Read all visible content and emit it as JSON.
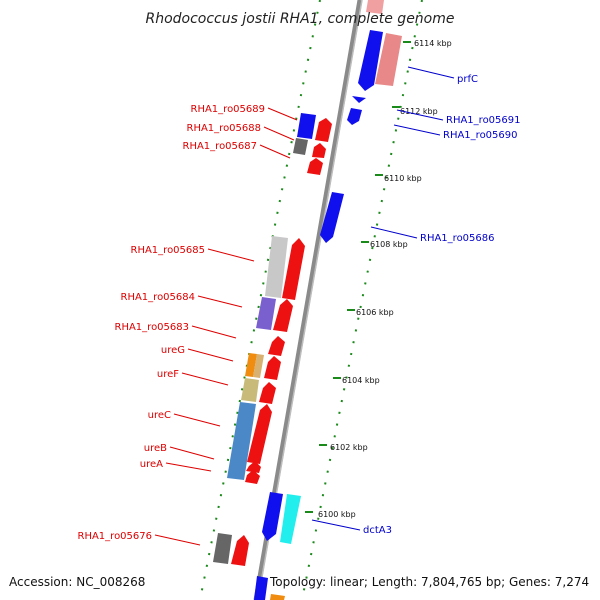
{
  "title": "Rhodococcus jostii RHA1, complete genome",
  "footer": {
    "accession": "Accession: NC_008268",
    "summary": "Topology: linear; Length: 7,804,765 bp; Genes: 7,274"
  },
  "colors": {
    "forward_label": "#cc0000",
    "reverse_label": "#0000cc",
    "backbone": "#888888",
    "tick": "#008000"
  },
  "ticks": [
    "6114 kbp",
    "6112 kbp",
    "6110 kbp",
    "6108 kbp",
    "6106 kbp",
    "6104 kbp",
    "6102 kbp",
    "6100 kbp"
  ],
  "left_labels": [
    "RHA1_ro05689",
    "RHA1_ro05688",
    "RHA1_ro05687",
    "RHA1_ro05685",
    "RHA1_ro05684",
    "RHA1_ro05683",
    "ureG",
    "ureF",
    "ureC",
    "ureB",
    "ureA",
    "RHA1_ro05676"
  ],
  "right_labels": [
    "prfC",
    "RHA1_ro05691",
    "RHA1_ro05690",
    "RHA1_ro05686",
    "dctA3"
  ]
}
